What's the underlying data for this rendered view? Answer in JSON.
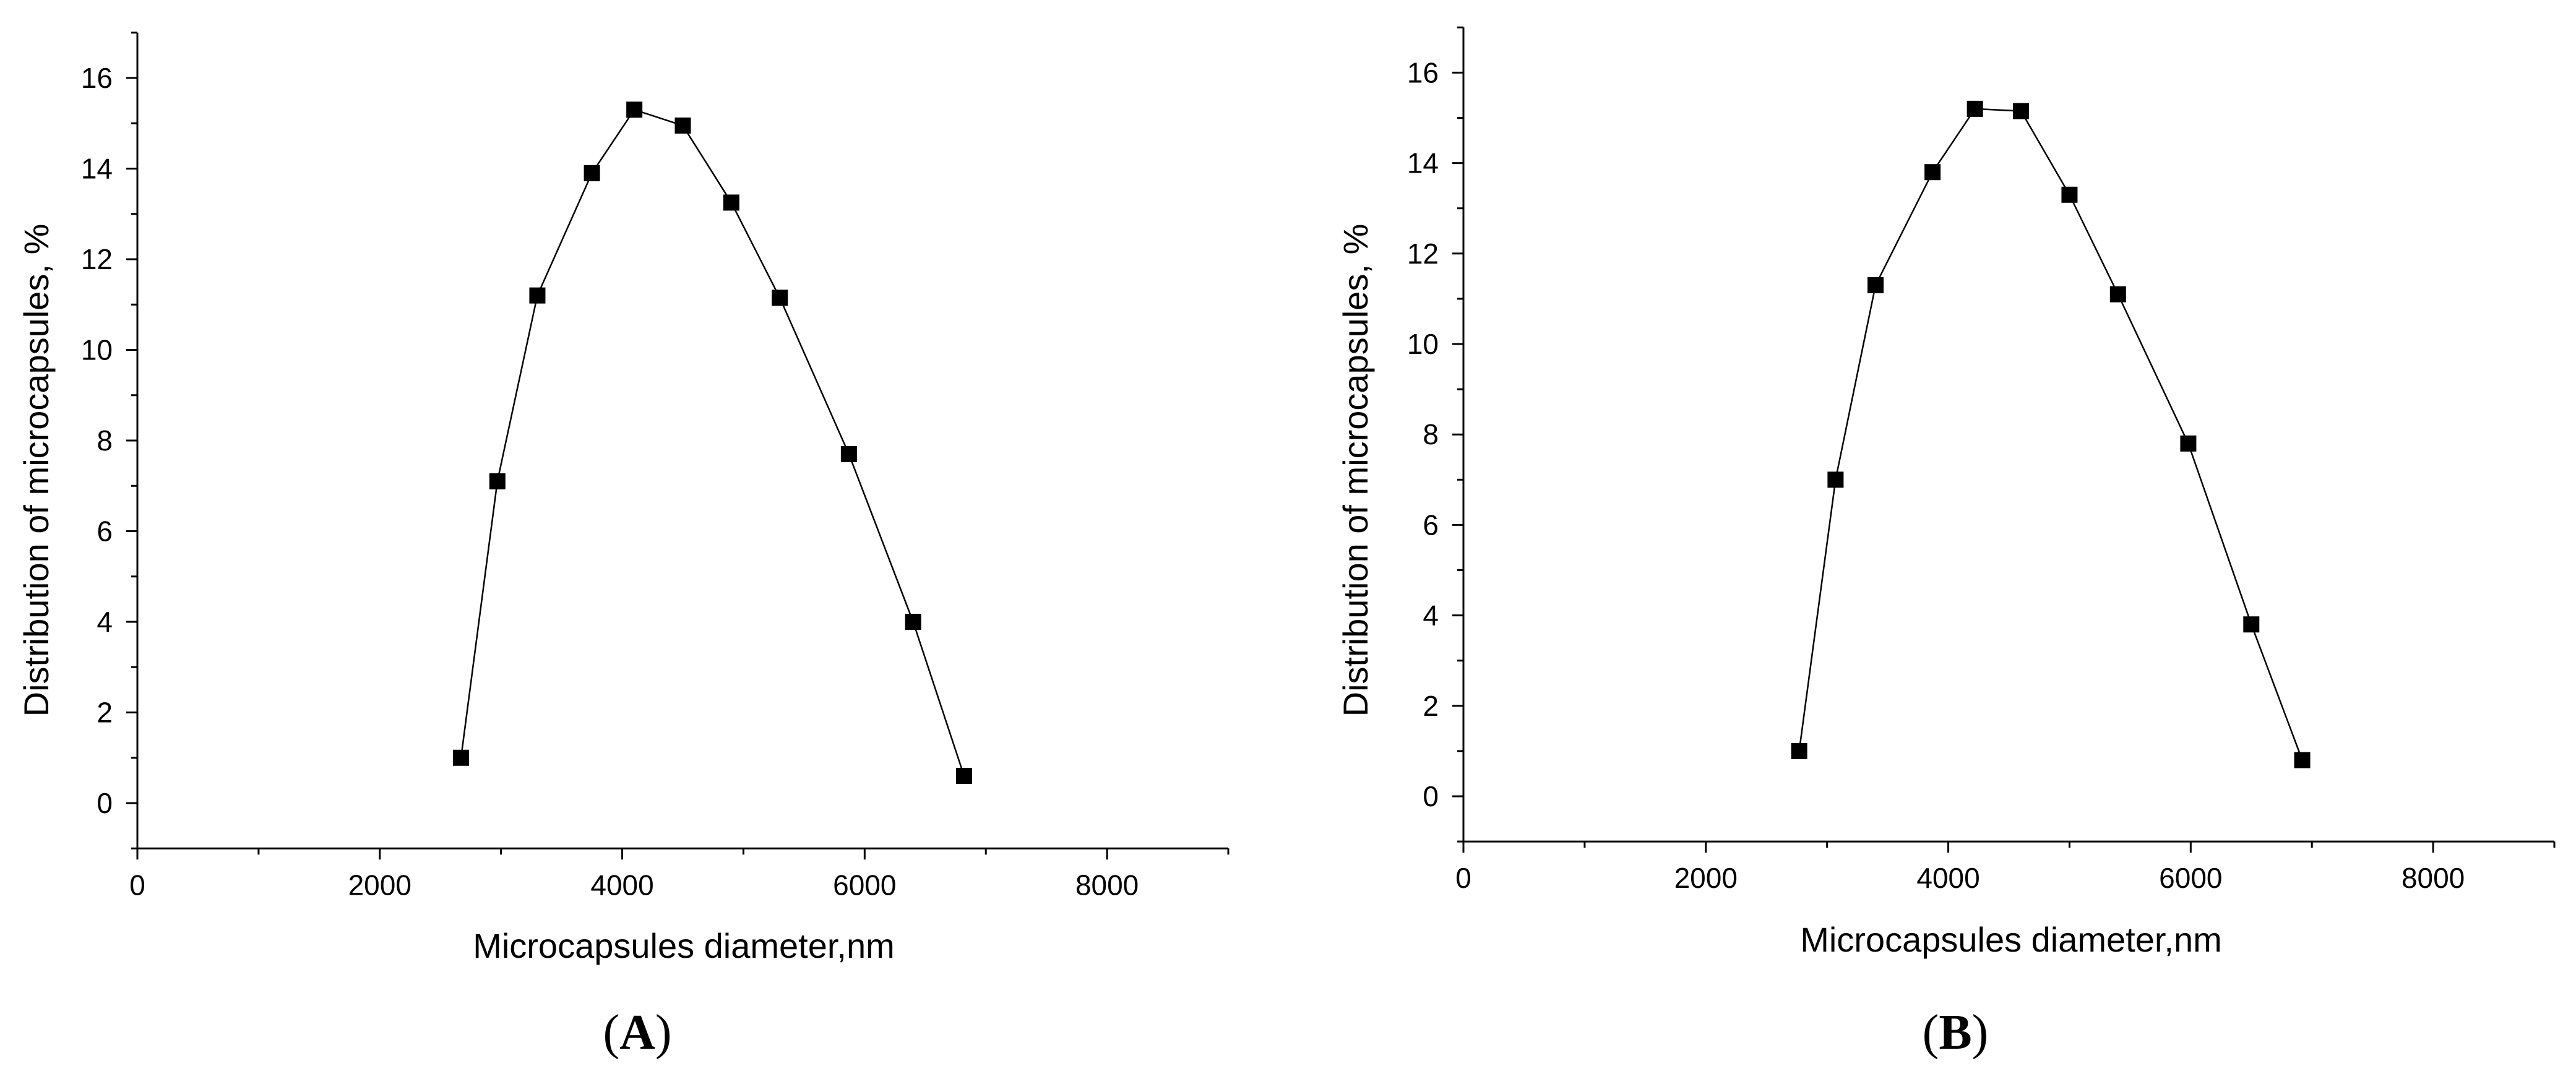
{
  "chart_data": [
    {
      "type": "line",
      "panel_label": "A",
      "xlabel": "Microcapsules diameter,nm",
      "ylabel": "Distribution of microcapsules, %",
      "xlim": [
        0,
        9000
      ],
      "ylim": [
        -1,
        17
      ],
      "xticks": [
        0,
        2000,
        4000,
        6000,
        8000
      ],
      "yticks": [
        0,
        2,
        4,
        6,
        8,
        10,
        12,
        14,
        16
      ],
      "grid": false,
      "marker": "square",
      "color": "#000000",
      "x": [
        2670,
        2970,
        3300,
        3750,
        4100,
        4500,
        4900,
        5300,
        5870,
        6400,
        6820
      ],
      "y": [
        1.0,
        7.1,
        11.2,
        13.9,
        15.3,
        14.95,
        13.25,
        11.15,
        7.7,
        4.0,
        0.6
      ]
    },
    {
      "type": "line",
      "panel_label": "B",
      "xlabel": "Microcapsules diameter,nm",
      "ylabel": "Distribution of microcapsules, %",
      "xlim": [
        0,
        9000
      ],
      "ylim": [
        -1,
        17
      ],
      "xticks": [
        0,
        2000,
        4000,
        6000,
        8000
      ],
      "yticks": [
        0,
        2,
        4,
        6,
        8,
        10,
        12,
        14,
        16
      ],
      "grid": false,
      "marker": "square",
      "color": "#000000",
      "x": [
        2770,
        3070,
        3400,
        3870,
        4220,
        4600,
        5000,
        5400,
        5980,
        6500,
        6920
      ],
      "y": [
        1.0,
        7.0,
        11.3,
        13.8,
        15.2,
        15.15,
        13.3,
        11.1,
        7.8,
        3.8,
        0.8
      ]
    }
  ]
}
